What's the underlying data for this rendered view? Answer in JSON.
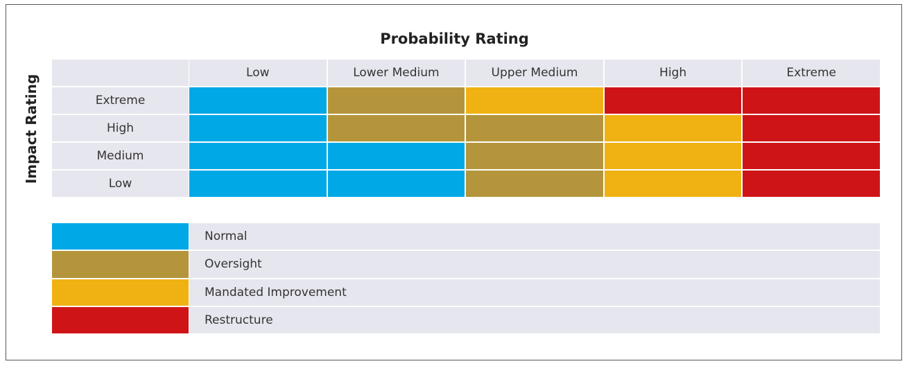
{
  "title": "Probability Rating",
  "row_axis_label": "Impact Rating",
  "columns": [
    "Low",
    "Lower Medium",
    "Upper Medium",
    "High",
    "Extreme"
  ],
  "rows": [
    {
      "label": "Extreme",
      "cells": [
        "#00a8e6",
        "#b5953b",
        "#f0b213",
        "#cf1418",
        "#cf1418"
      ]
    },
    {
      "label": "High",
      "cells": [
        "#00a8e6",
        "#b5953b",
        "#b5953b",
        "#f0b213",
        "#cf1418"
      ]
    },
    {
      "label": "Medium",
      "cells": [
        "#00a8e6",
        "#00a8e6",
        "#b5953b",
        "#f0b213",
        "#cf1418"
      ]
    },
    {
      "label": "Low",
      "cells": [
        "#00a8e6",
        "#00a8e6",
        "#b5953b",
        "#f0b213",
        "#cf1418"
      ]
    }
  ],
  "legend": [
    {
      "label": "Normal",
      "color": "#00a8e6"
    },
    {
      "label": "Oversight",
      "color": "#b5953b"
    },
    {
      "label": "Mandated Improvement",
      "color": "#f0b213"
    },
    {
      "label": "Restructure",
      "color": "#cf1418"
    }
  ]
}
